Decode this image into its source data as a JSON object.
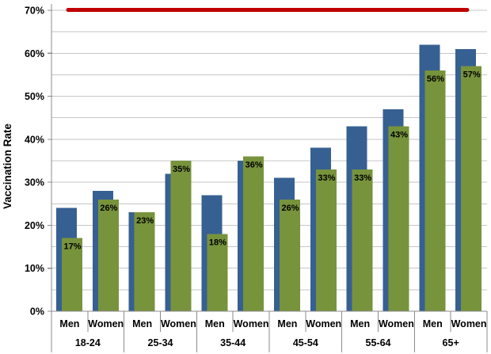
{
  "chart_data": {
    "type": "bar",
    "ylabel": "Vaccination Rate",
    "y_axis": {
      "min": 0,
      "max": 70,
      "tick_step": 10,
      "gridline_step": 5,
      "tick_labels": [
        "0%",
        "10%",
        "20%",
        "30%",
        "40%",
        "50%",
        "60%",
        "70%"
      ]
    },
    "groups": [
      "18-24",
      "25-34",
      "35-44",
      "45-54",
      "55-64",
      "65+"
    ],
    "sub_categories": [
      "Men",
      "Women"
    ],
    "series": [
      {
        "id": "series-blue",
        "color": "#376092",
        "values": [
          24,
          28,
          23,
          32,
          27,
          35,
          31,
          38,
          43,
          47,
          62,
          61
        ],
        "data_labels": null
      },
      {
        "id": "series-green",
        "color": "#77933C",
        "values": [
          17,
          26,
          23,
          35,
          18,
          36,
          26,
          33,
          33,
          43,
          56,
          57
        ],
        "data_labels": [
          "17%",
          "26%",
          "23%",
          "35%",
          "18%",
          "36%",
          "26%",
          "33%",
          "33%",
          "43%",
          "56%",
          "57%"
        ]
      }
    ],
    "target_line": {
      "value": 70,
      "color": "#C00000"
    },
    "colors": {
      "gridline": "#C6C6C6",
      "axis": "#8C8C8C",
      "label_text": "#000000",
      "data_label_text": "#FFFFFF"
    }
  }
}
